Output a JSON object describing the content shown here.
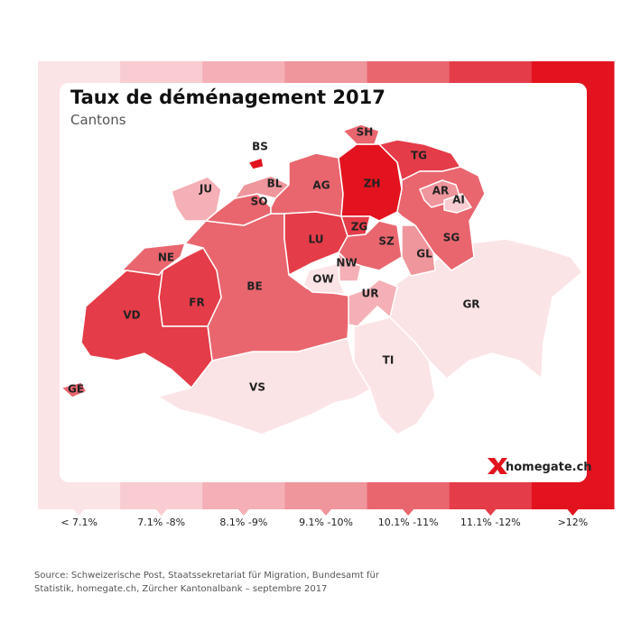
{
  "header": {
    "title": "Taux de déménagement 2017",
    "subtitle": "Cantons"
  },
  "legend": [
    {
      "label": "< 7.1%",
      "color": "#fbe4e6"
    },
    {
      "label": "7.1% -8%",
      "color": "#f8ccd0"
    },
    {
      "label": "8.1% -9%",
      "color": "#f4b0b6"
    },
    {
      "label": "9.1% -10%",
      "color": "#ef959c"
    },
    {
      "label": "10.1% -11%",
      "color": "#e9666f"
    },
    {
      "label": "11.1% -12%",
      "color": "#e43c48"
    },
    {
      "label": ">12%",
      "color": "#e2131e"
    }
  ],
  "cantons": [
    {
      "label": "GR",
      "color": "#fbe4e6"
    },
    {
      "label": "TI",
      "color": "#fbe4e6"
    },
    {
      "label": "VS",
      "color": "#fbe4e6"
    },
    {
      "label": "UR",
      "color": "#f4b0b6"
    },
    {
      "label": "BE",
      "color": "#e9666f"
    },
    {
      "label": "FR",
      "color": "#e43c48"
    },
    {
      "label": "VD",
      "color": "#e43c48"
    },
    {
      "label": "GE",
      "color": "#e9666f"
    },
    {
      "label": "NE",
      "color": "#e9666f"
    },
    {
      "label": "JU",
      "color": "#f4b0b6"
    },
    {
      "label": "SO",
      "color": "#e9666f"
    },
    {
      "label": "BL",
      "color": "#ef959c"
    },
    {
      "label": "BS",
      "color": "#e2131e"
    },
    {
      "label": "AG",
      "color": "#e9666f"
    },
    {
      "label": "ZH",
      "color": "#e2131e"
    },
    {
      "label": "SH",
      "color": "#e9666f"
    },
    {
      "label": "TG",
      "color": "#e43c48"
    },
    {
      "label": "SG",
      "color": "#e9666f"
    },
    {
      "label": "AR",
      "color": "#ef959c"
    },
    {
      "label": "AI",
      "color": "#f8ccd0"
    },
    {
      "label": "ZG",
      "color": "#e43c48"
    },
    {
      "label": "LU",
      "color": "#e43c48"
    },
    {
      "label": "SZ",
      "color": "#e9666f"
    },
    {
      "label": "GL",
      "color": "#ef959c"
    },
    {
      "label": "NW",
      "color": "#f4b0b6"
    },
    {
      "label": "OW",
      "color": "#fbe4e6"
    }
  ],
  "logo": "homegate.ch",
  "source": [
    "Source: Schweizerische Post, Staatssekretariat für Migration, Bundesamt für",
    "Statistik, homegate.ch, Zürcher Kantonalbank – septembre 2017"
  ]
}
